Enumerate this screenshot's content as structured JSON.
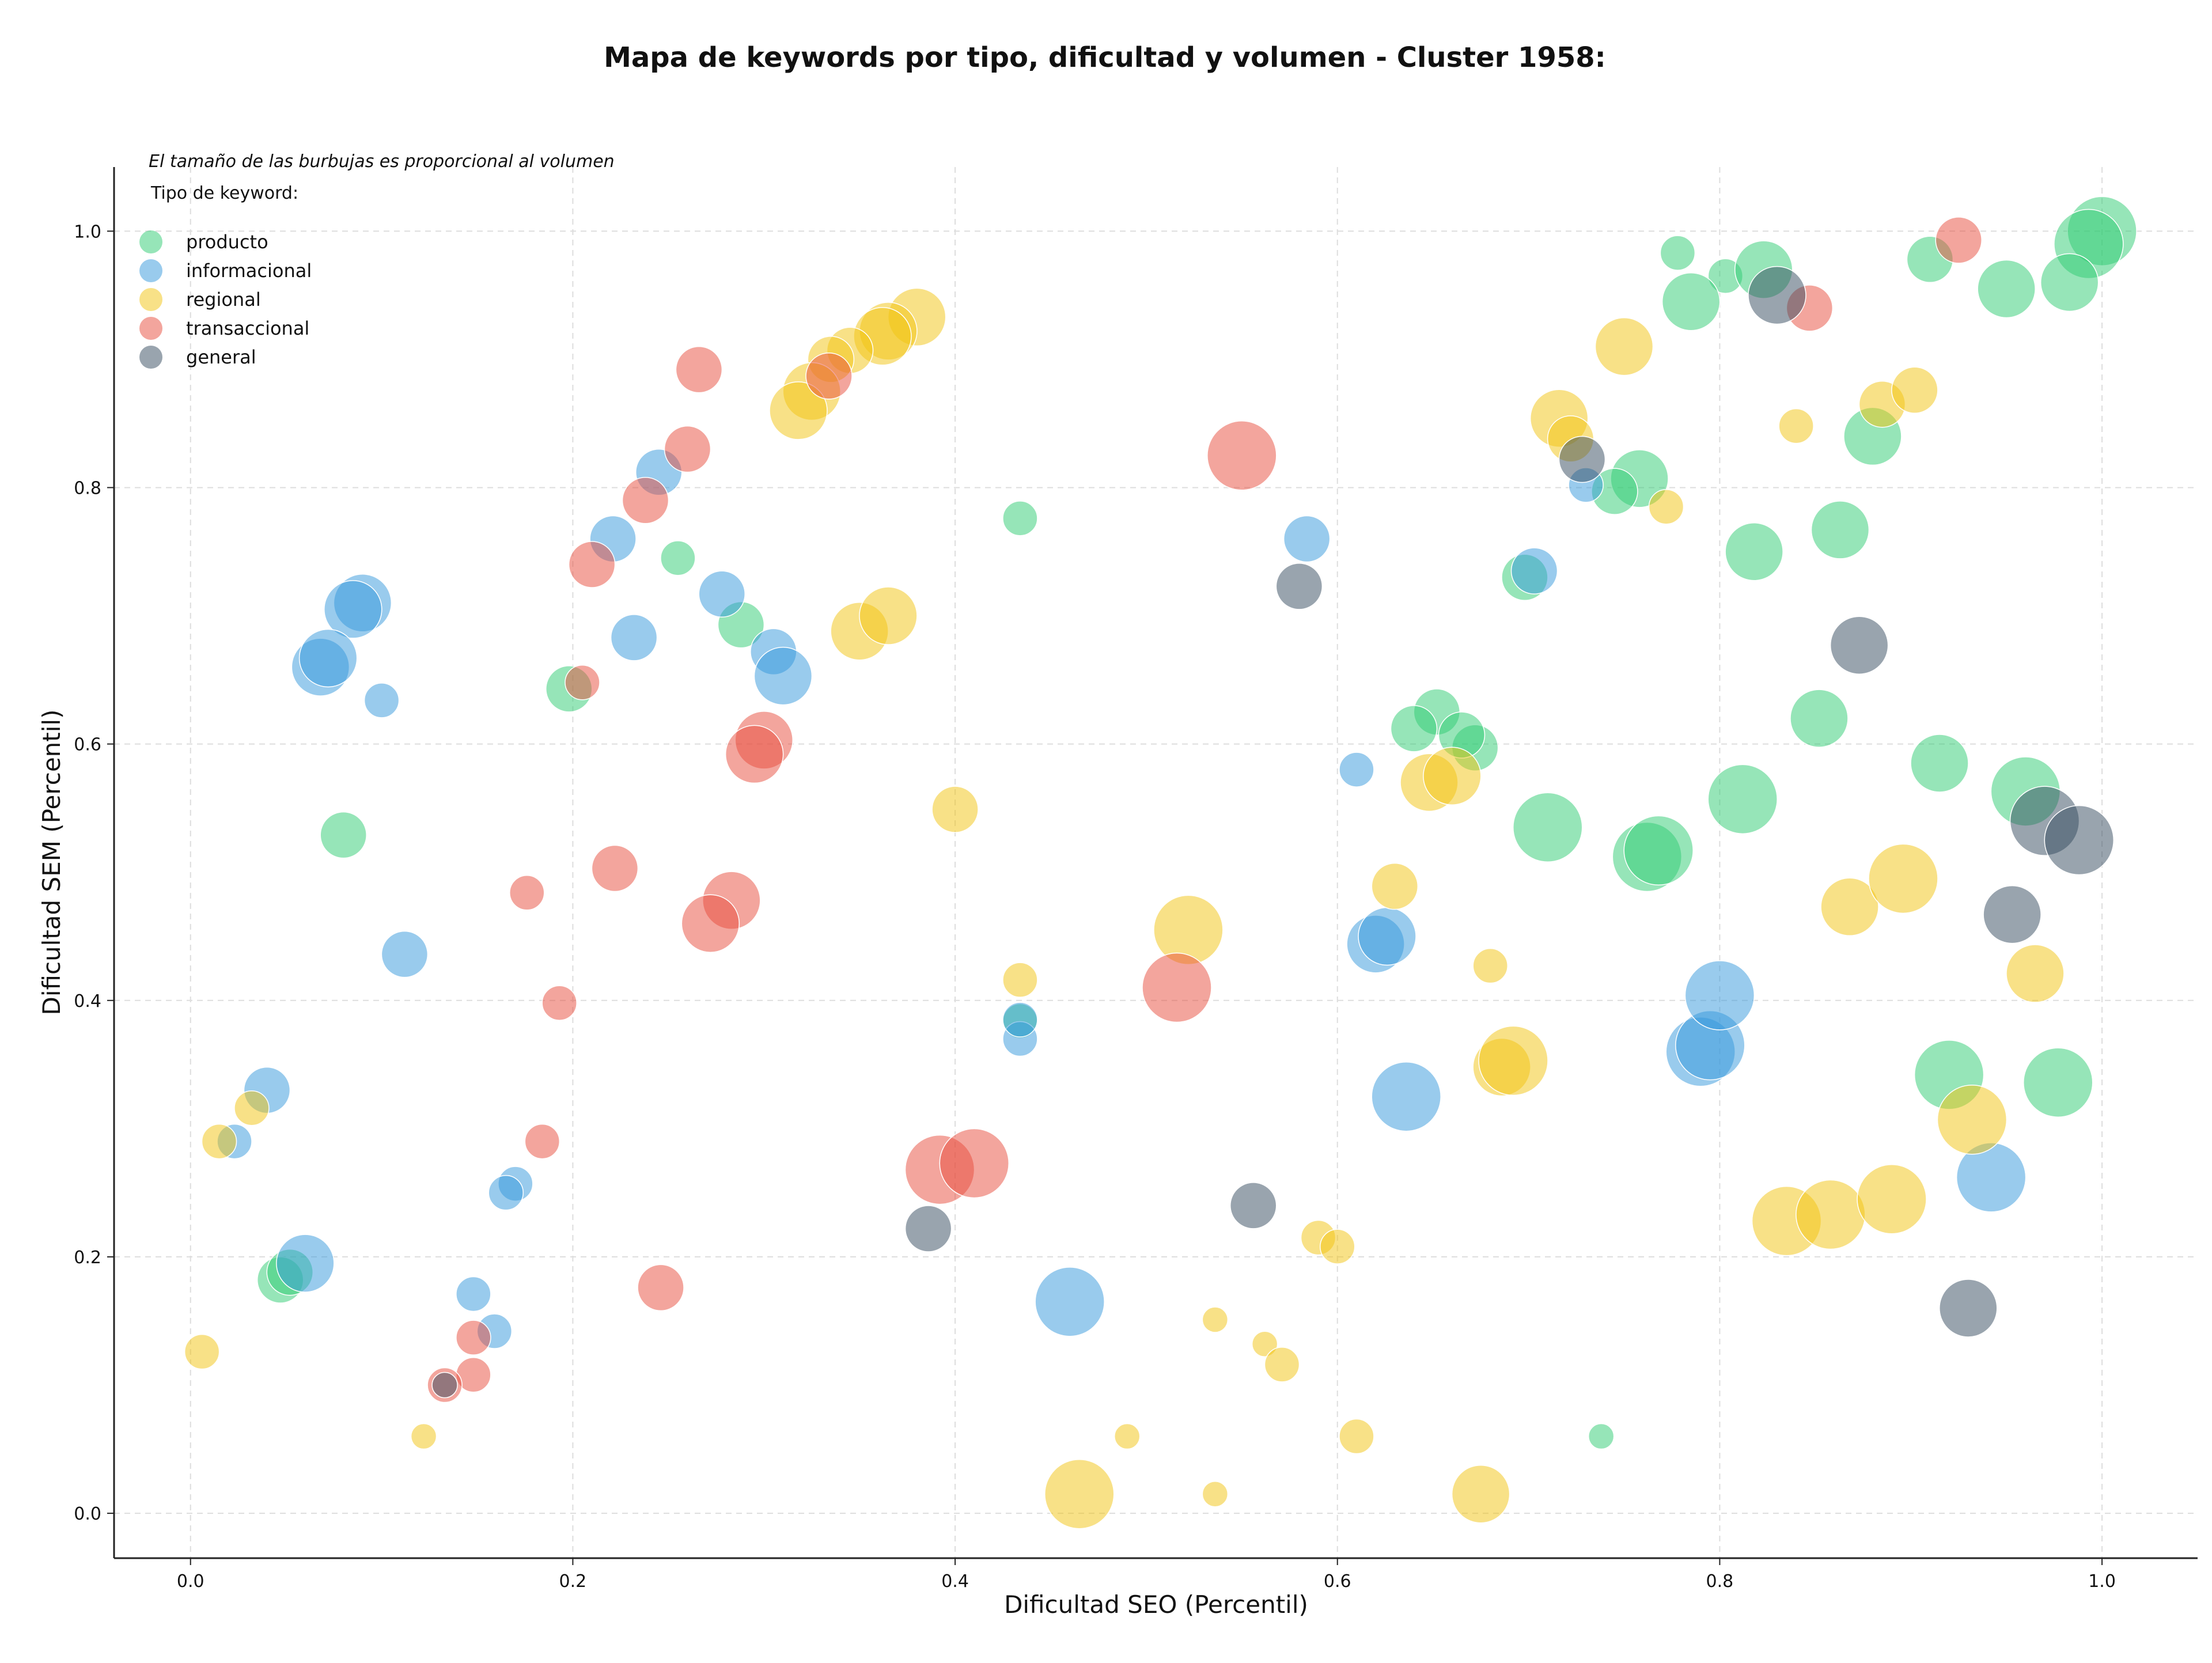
{
  "chart_data": {
    "type": "scatter",
    "title": "Mapa de keywords por tipo, dificultad y volumen - Cluster 1958:",
    "subtitle": "El tamaño de las burbujas es proporcional al volumen",
    "xlabel": "Dificultad SEO (Percentil)",
    "ylabel": "Dificultad SEM (Percentil)",
    "xlim": [
      -0.04,
      1.05
    ],
    "ylim": [
      -0.035,
      1.05
    ],
    "x_ticks": [
      "0.0",
      "0.2",
      "0.4",
      "0.6",
      "0.8",
      "1.0"
    ],
    "y_ticks": [
      "0.0",
      "0.2",
      "0.4",
      "0.6",
      "0.8",
      "1.0"
    ],
    "grid": true,
    "legend": {
      "title": "Tipo de keyword:",
      "placement": "top-left"
    },
    "size_encoding": "volume (relative)",
    "series": [
      {
        "name": "producto",
        "color": "#2ecc71",
        "points": [
          [
            1.0,
            1.0,
            5
          ],
          [
            0.993,
            0.99,
            5
          ],
          [
            0.91,
            0.978,
            3
          ],
          [
            0.95,
            0.955,
            4
          ],
          [
            0.983,
            0.96,
            4
          ],
          [
            0.778,
            0.983,
            2
          ],
          [
            0.803,
            0.965,
            2
          ],
          [
            0.823,
            0.97,
            4
          ],
          [
            0.785,
            0.945,
            4
          ],
          [
            0.88,
            0.84,
            4
          ],
          [
            0.863,
            0.767,
            4
          ],
          [
            0.818,
            0.75,
            4
          ],
          [
            0.758,
            0.807,
            4
          ],
          [
            0.745,
            0.797,
            3
          ],
          [
            0.434,
            0.776,
            2
          ],
          [
            0.255,
            0.745,
            2
          ],
          [
            0.288,
            0.693,
            3
          ],
          [
            0.198,
            0.643,
            3
          ],
          [
            0.08,
            0.529,
            3
          ],
          [
            0.698,
            0.73,
            3
          ],
          [
            0.652,
            0.625,
            3
          ],
          [
            0.64,
            0.612,
            3
          ],
          [
            0.672,
            0.597,
            3
          ],
          [
            0.665,
            0.607,
            3
          ],
          [
            0.71,
            0.535,
            5
          ],
          [
            0.762,
            0.512,
            5
          ],
          [
            0.768,
            0.517,
            5
          ],
          [
            0.812,
            0.557,
            5
          ],
          [
            0.852,
            0.62,
            4
          ],
          [
            0.915,
            0.585,
            4
          ],
          [
            0.96,
            0.563,
            5
          ],
          [
            0.92,
            0.342,
            5
          ],
          [
            0.977,
            0.336,
            5
          ],
          [
            0.047,
            0.182,
            3
          ],
          [
            0.052,
            0.188,
            3
          ],
          [
            0.434,
            0.384,
            2
          ],
          [
            0.738,
            0.06,
            1
          ]
        ]
      },
      {
        "name": "informacional",
        "color": "#3498db",
        "points": [
          [
            0.09,
            0.71,
            4
          ],
          [
            0.085,
            0.705,
            4
          ],
          [
            0.068,
            0.66,
            4
          ],
          [
            0.072,
            0.667,
            4
          ],
          [
            0.1,
            0.634,
            2
          ],
          [
            0.245,
            0.812,
            3
          ],
          [
            0.221,
            0.76,
            3
          ],
          [
            0.278,
            0.717,
            3
          ],
          [
            0.232,
            0.683,
            3
          ],
          [
            0.305,
            0.672,
            3
          ],
          [
            0.31,
            0.653,
            4
          ],
          [
            0.112,
            0.436,
            3
          ],
          [
            0.04,
            0.33,
            3
          ],
          [
            0.023,
            0.29,
            2
          ],
          [
            0.06,
            0.195,
            4
          ],
          [
            0.148,
            0.171,
            2
          ],
          [
            0.17,
            0.257,
            2
          ],
          [
            0.165,
            0.25,
            2
          ],
          [
            0.159,
            0.142,
            2
          ],
          [
            0.46,
            0.165,
            5
          ],
          [
            0.434,
            0.37,
            2
          ],
          [
            0.434,
            0.385,
            2
          ],
          [
            0.584,
            0.76,
            3
          ],
          [
            0.61,
            0.58,
            2
          ],
          [
            0.62,
            0.444,
            4
          ],
          [
            0.626,
            0.45,
            4
          ],
          [
            0.636,
            0.325,
            5
          ],
          [
            0.703,
            0.735,
            3
          ],
          [
            0.73,
            0.802,
            2
          ],
          [
            0.79,
            0.36,
            5
          ],
          [
            0.795,
            0.365,
            5
          ],
          [
            0.8,
            0.404,
            5
          ],
          [
            0.942,
            0.262,
            5
          ]
        ]
      },
      {
        "name": "regional",
        "color": "#f1c40f",
        "points": [
          [
            0.38,
            0.933,
            4
          ],
          [
            0.365,
            0.922,
            4
          ],
          [
            0.362,
            0.918,
            4
          ],
          [
            0.345,
            0.907,
            3
          ],
          [
            0.335,
            0.9,
            3
          ],
          [
            0.325,
            0.875,
            4
          ],
          [
            0.318,
            0.86,
            4
          ],
          [
            0.35,
            0.688,
            4
          ],
          [
            0.365,
            0.7,
            4
          ],
          [
            0.4,
            0.549,
            3
          ],
          [
            0.015,
            0.29,
            2
          ],
          [
            0.032,
            0.316,
            2
          ],
          [
            0.006,
            0.126,
            2
          ],
          [
            0.122,
            0.06,
            1
          ],
          [
            0.434,
            0.416,
            2
          ],
          [
            0.522,
            0.455,
            5
          ],
          [
            0.59,
            0.215,
            2
          ],
          [
            0.6,
            0.208,
            2
          ],
          [
            0.536,
            0.151,
            1
          ],
          [
            0.562,
            0.132,
            1
          ],
          [
            0.571,
            0.116,
            2
          ],
          [
            0.49,
            0.06,
            1
          ],
          [
            0.61,
            0.06,
            2
          ],
          [
            0.536,
            0.015,
            1
          ],
          [
            0.465,
            0.015,
            5
          ],
          [
            0.675,
            0.015,
            4
          ],
          [
            0.63,
            0.489,
            3
          ],
          [
            0.648,
            0.57,
            4
          ],
          [
            0.66,
            0.575,
            4
          ],
          [
            0.68,
            0.427,
            2
          ],
          [
            0.686,
            0.348,
            4
          ],
          [
            0.692,
            0.353,
            5
          ],
          [
            0.716,
            0.854,
            4
          ],
          [
            0.722,
            0.838,
            3
          ],
          [
            0.75,
            0.91,
            4
          ],
          [
            0.772,
            0.785,
            2
          ],
          [
            0.84,
            0.848,
            2
          ],
          [
            0.885,
            0.865,
            3
          ],
          [
            0.902,
            0.876,
            3
          ],
          [
            0.868,
            0.473,
            4
          ],
          [
            0.896,
            0.495,
            5
          ],
          [
            0.965,
            0.421,
            4
          ],
          [
            0.932,
            0.307,
            5
          ],
          [
            0.835,
            0.228,
            5
          ],
          [
            0.858,
            0.233,
            5
          ],
          [
            0.89,
            0.245,
            5
          ]
        ]
      },
      {
        "name": "transaccional",
        "color": "#e74c3c",
        "points": [
          [
            0.266,
            0.892,
            3
          ],
          [
            0.26,
            0.83,
            3
          ],
          [
            0.238,
            0.79,
            3
          ],
          [
            0.21,
            0.74,
            3
          ],
          [
            0.205,
            0.648,
            2
          ],
          [
            0.3,
            0.603,
            4
          ],
          [
            0.295,
            0.592,
            4
          ],
          [
            0.222,
            0.503,
            3
          ],
          [
            0.176,
            0.484,
            2
          ],
          [
            0.283,
            0.478,
            4
          ],
          [
            0.272,
            0.46,
            4
          ],
          [
            0.193,
            0.398,
            2
          ],
          [
            0.184,
            0.29,
            2
          ],
          [
            0.246,
            0.176,
            3
          ],
          [
            0.148,
            0.137,
            2
          ],
          [
            0.148,
            0.108,
            2
          ],
          [
            0.133,
            0.1,
            2
          ],
          [
            0.334,
            0.887,
            3
          ],
          [
            0.55,
            0.825,
            5
          ],
          [
            0.516,
            0.41,
            5
          ],
          [
            0.392,
            0.268,
            5
          ],
          [
            0.41,
            0.273,
            5
          ],
          [
            0.925,
            0.993,
            3
          ],
          [
            0.847,
            0.94,
            3
          ]
        ]
      },
      {
        "name": "general",
        "color": "#34495e",
        "points": [
          [
            0.83,
            0.95,
            4
          ],
          [
            0.728,
            0.822,
            3
          ],
          [
            0.58,
            0.723,
            3
          ],
          [
            0.873,
            0.677,
            4
          ],
          [
            0.97,
            0.54,
            5
          ],
          [
            0.988,
            0.525,
            5
          ],
          [
            0.953,
            0.467,
            4
          ],
          [
            0.93,
            0.16,
            4
          ],
          [
            0.386,
            0.222,
            3
          ],
          [
            0.556,
            0.24,
            3
          ],
          [
            0.133,
            0.1,
            1
          ]
        ]
      }
    ]
  }
}
